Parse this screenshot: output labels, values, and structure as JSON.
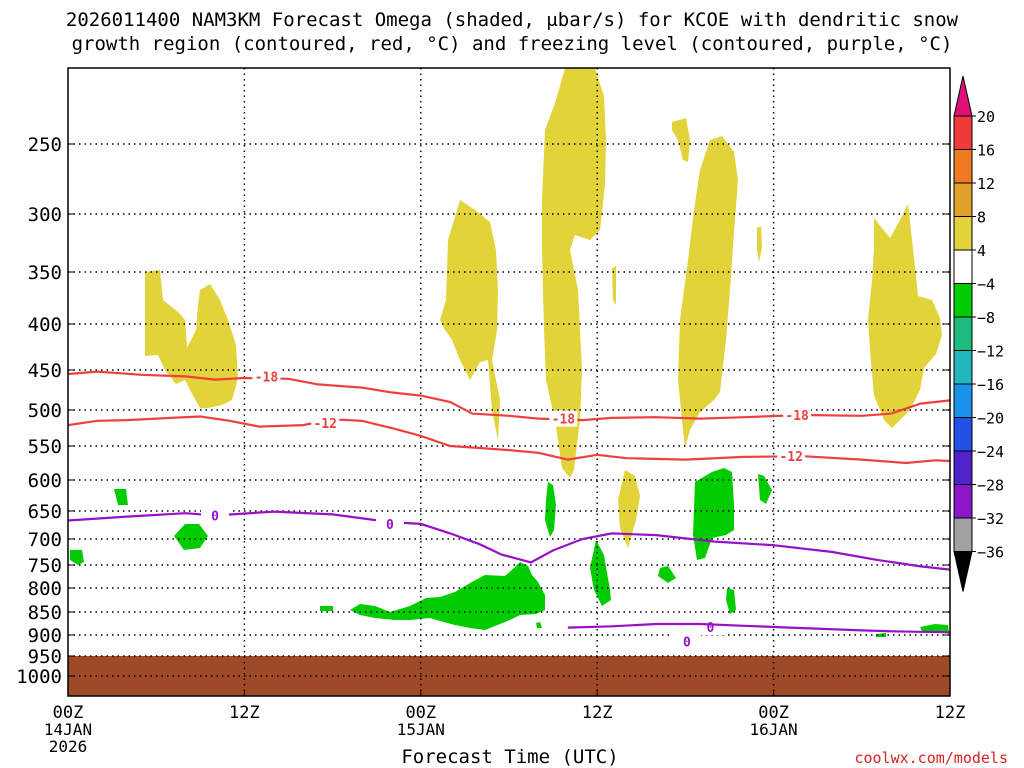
{
  "chart_data": {
    "type": "time-height cross-section",
    "title_line1": "2026011400 NAM3KM Forecast Omega (shaded, μbar/s) for KCOE with dendritic snow",
    "title_line2": "growth region (contoured, red, °C) and freezing level (contoured, purple, °C)",
    "xlabel": "Forecast Time (UTC)",
    "credit": "coolwx.com/models",
    "x_range_hours": [
      0,
      60
    ],
    "y_range_mb": [
      1000,
      200
    ],
    "x_ticks": [
      {
        "hour": 0,
        "lines": [
          "00Z",
          "14JAN",
          "2026"
        ]
      },
      {
        "hour": 12,
        "lines": [
          "12Z"
        ]
      },
      {
        "hour": 24,
        "lines": [
          "00Z",
          "15JAN"
        ]
      },
      {
        "hour": 36,
        "lines": [
          "12Z"
        ]
      },
      {
        "hour": 48,
        "lines": [
          "00Z",
          "16JAN"
        ]
      },
      {
        "hour": 60,
        "lines": [
          "12Z"
        ]
      }
    ],
    "y_ticks": [
      250,
      300,
      350,
      400,
      450,
      500,
      550,
      600,
      650,
      700,
      750,
      800,
      850,
      900,
      950,
      1000
    ],
    "colorbar": {
      "labels": [
        "20",
        "16",
        "12",
        "8",
        "4",
        "−4",
        "−8",
        "−12",
        "−16",
        "−20",
        "−24",
        "−28",
        "−32",
        "−36"
      ],
      "top_color": "#e01078",
      "bottom_color": "#000000",
      "colors": [
        "#ef3a3a",
        "#ef7a24",
        "#e2a12c",
        "#e3d33a",
        "#ffffff",
        "#00cc00",
        "#1dbb7c",
        "#22b7bd",
        "#1b92ea",
        "#2152e3",
        "#4f22cc",
        "#8a18c9",
        "#a1a1a1"
      ]
    },
    "contours": [
      {
        "name": "-18C isotherm",
        "color": "#ef4040",
        "labels": [
          {
            "value": "-18",
            "hour": 13.5,
            "mb": 458
          },
          {
            "value": "-18",
            "hour": 33.7,
            "mb": 512
          },
          {
            "value": "-18",
            "hour": 49.6,
            "mb": 507
          }
        ],
        "points": [
          [
            0,
            455
          ],
          [
            2,
            452
          ],
          [
            5,
            456
          ],
          [
            8,
            458
          ],
          [
            10,
            462
          ],
          [
            12,
            460
          ],
          [
            15,
            461
          ],
          [
            17,
            468
          ],
          [
            20,
            472
          ],
          [
            22,
            478
          ],
          [
            24,
            482
          ],
          [
            26,
            490
          ],
          [
            27.5,
            505
          ],
          [
            30,
            508
          ],
          [
            32,
            512
          ],
          [
            35,
            514
          ],
          [
            37,
            511
          ],
          [
            40,
            510
          ],
          [
            43,
            512
          ],
          [
            46,
            510
          ],
          [
            50,
            507
          ],
          [
            54,
            508
          ],
          [
            56,
            505
          ],
          [
            58,
            492
          ],
          [
            60,
            488
          ]
        ]
      },
      {
        "name": "-12C isotherm",
        "color": "#ef4040",
        "labels": [
          {
            "value": "-12",
            "hour": 17.5,
            "mb": 518
          },
          {
            "value": "-12",
            "hour": 49.2,
            "mb": 565
          }
        ],
        "points": [
          [
            0,
            521
          ],
          [
            2,
            515
          ],
          [
            4,
            514
          ],
          [
            7,
            511
          ],
          [
            9,
            509
          ],
          [
            11,
            515
          ],
          [
            13,
            523
          ],
          [
            16,
            521
          ],
          [
            18,
            513
          ],
          [
            20,
            515
          ],
          [
            22,
            525
          ],
          [
            24,
            536
          ],
          [
            26,
            550
          ],
          [
            28,
            553
          ],
          [
            30,
            556
          ],
          [
            32,
            560
          ],
          [
            34,
            570
          ],
          [
            36,
            563
          ],
          [
            38,
            568
          ],
          [
            42,
            570
          ],
          [
            46,
            566
          ],
          [
            50,
            565
          ],
          [
            54,
            570
          ],
          [
            57,
            575
          ],
          [
            59,
            571
          ],
          [
            60,
            572
          ]
        ]
      },
      {
        "name": "0C freezing level",
        "color": "#9910c8",
        "labels": [
          {
            "value": "0",
            "hour": 10,
            "mb": 658
          },
          {
            "value": "0",
            "hour": 21.9,
            "mb": 673
          },
          {
            "value": "0",
            "hour": 43.7,
            "mb": 883
          },
          {
            "value": "0",
            "hour": 42.1,
            "mb": 915
          }
        ],
        "points": [
          [
            0,
            667
          ],
          [
            4,
            660
          ],
          [
            8,
            654
          ],
          [
            10,
            658
          ],
          [
            14,
            651
          ],
          [
            18,
            656
          ],
          [
            22,
            670
          ],
          [
            24,
            673
          ],
          [
            26,
            690
          ],
          [
            28,
            710
          ],
          [
            29.5,
            730
          ],
          [
            31.5,
            745
          ],
          [
            33,
            722
          ],
          [
            35,
            700
          ],
          [
            37,
            690
          ],
          [
            40,
            693
          ],
          [
            44,
            705
          ],
          [
            48,
            712
          ],
          [
            52,
            725
          ],
          [
            55,
            740
          ],
          [
            58,
            753
          ],
          [
            60,
            760
          ]
        ]
      },
      {
        "name": "0C near-surface",
        "color": "#9910c8",
        "labels": [],
        "points": [
          [
            34,
            884
          ],
          [
            37,
            881
          ],
          [
            40,
            876
          ],
          [
            43,
            876
          ],
          [
            46,
            880
          ],
          [
            50,
            885
          ],
          [
            54,
            890
          ],
          [
            56,
            892
          ],
          [
            58,
            893
          ],
          [
            60,
            894
          ]
        ]
      }
    ],
    "shaded_regions": [
      {
        "name": "positive omega region",
        "color": "#e3d33a",
        "level": "4 to 8"
      },
      {
        "name": "negative omega region",
        "color": "#00cc00",
        "level": "-4 to -8"
      }
    ],
    "terrain": {
      "color": "#9e4a28",
      "top_mb": 945
    }
  }
}
